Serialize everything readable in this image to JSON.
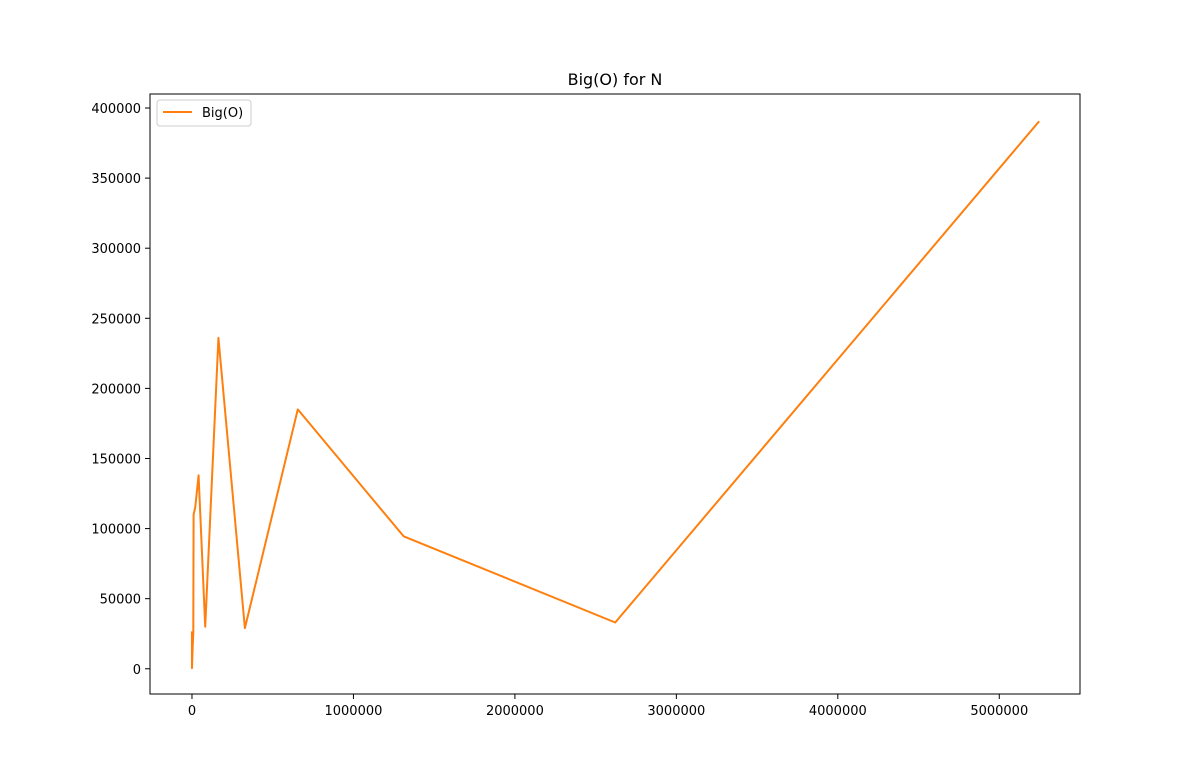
{
  "chart_data": {
    "type": "line",
    "title": "Big(O) for N",
    "xlabel": "",
    "ylabel": "",
    "xlim": [
      -260000,
      5500000
    ],
    "ylim": [
      -18000,
      410000
    ],
    "xticks": [
      0,
      1000000,
      2000000,
      3000000,
      4000000,
      5000000
    ],
    "xtick_labels": [
      "0",
      "1000000",
      "2000000",
      "3000000",
      "4000000",
      "5000000"
    ],
    "yticks": [
      0,
      50000,
      100000,
      150000,
      200000,
      250000,
      300000,
      350000,
      400000
    ],
    "ytick_labels": [
      "0",
      "50000",
      "100000",
      "150000",
      "200000",
      "250000",
      "300000",
      "350000",
      "400000"
    ],
    "grid": false,
    "legend": {
      "placement": "upper-left",
      "entries": [
        "Big(O)"
      ]
    },
    "series": [
      {
        "name": "Big(O)",
        "color": "#ff7f0e",
        "x": [
          1,
          2,
          4,
          8,
          16,
          32,
          64,
          128,
          256,
          512,
          1024,
          2048,
          4096,
          8192,
          10000,
          20000,
          40960,
          81920,
          163840,
          327680,
          655360,
          1310720,
          2621440,
          5242880
        ],
        "y": [
          26000,
          8000,
          1000,
          500,
          1500,
          3000,
          700,
          900,
          1200,
          2000,
          4000,
          8000,
          15000,
          26000,
          110000,
          115000,
          138000,
          30000,
          236000,
          29000,
          185000,
          94500,
          33000,
          390000
        ]
      }
    ]
  }
}
